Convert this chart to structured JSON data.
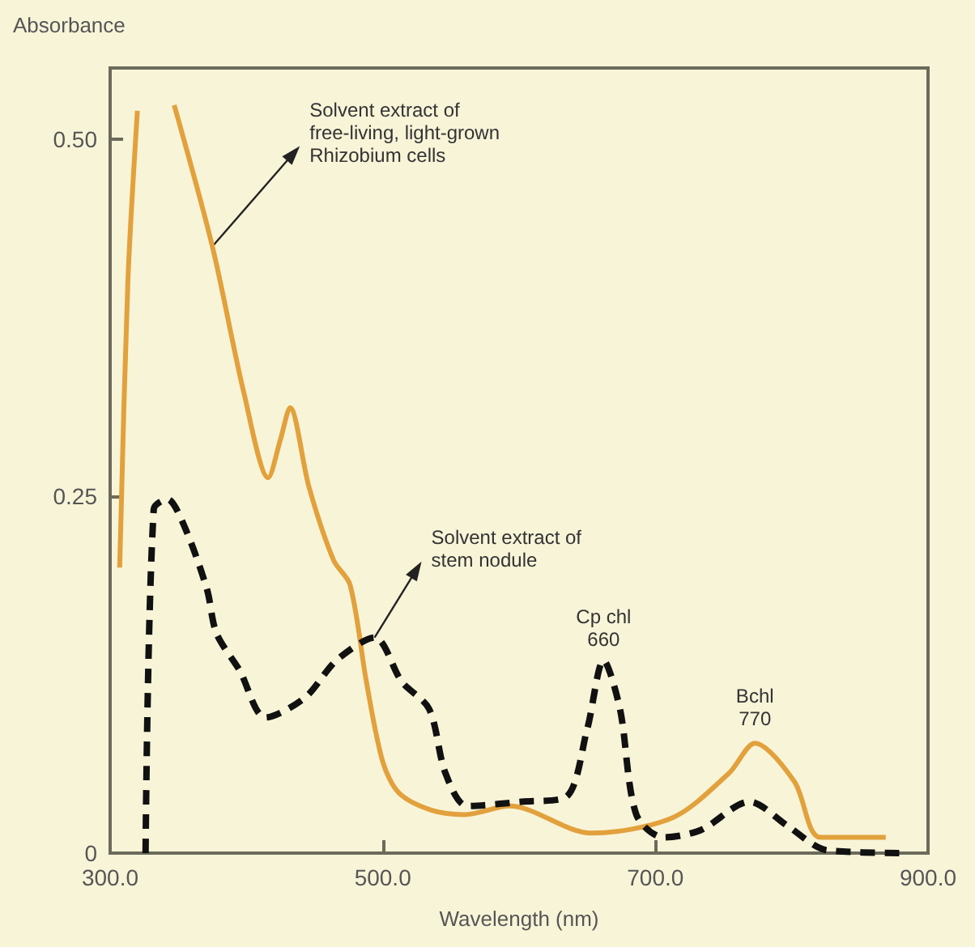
{
  "chart_data": {
    "type": "line",
    "ylabel": "Absorbance",
    "xlabel": "Wavelength (nm)",
    "xlim": [
      300,
      900
    ],
    "ylim": [
      0,
      0.55
    ],
    "xticks": [
      {
        "value": 300,
        "label": "300.0"
      },
      {
        "value": 500,
        "label": "500.0"
      },
      {
        "value": 700,
        "label": "700.0"
      },
      {
        "value": 900,
        "label": "900.0"
      }
    ],
    "yticks": [
      0,
      0.25,
      {
        "value": 0.5,
        "label": "0.50"
      }
    ],
    "grid": false,
    "marker": "none",
    "series": [
      {
        "color": "#e2a13c",
        "line_style": "solid",
        "x": [
          307,
          313,
          320,
          333,
          347,
          375,
          398,
          416,
          425,
          432,
          446,
          464,
          476,
          488,
          500,
          512,
          536,
          560,
          593,
          653,
          713,
          754,
          773,
          802,
          821,
          869
        ],
        "values": [
          0.2,
          0.4,
          0.52,
          null,
          0.524,
          0.425,
          0.323,
          0.263,
          0.29,
          0.312,
          0.256,
          0.205,
          0.188,
          0.12,
          0.064,
          0.042,
          0.03,
          0.027,
          0.033,
          0.014,
          0.025,
          0.056,
          0.077,
          0.05,
          0.011,
          0.011
        ]
      },
      {
        "color": "#111111",
        "line_style": "dashed",
        "x": [
          326,
          332,
          342,
          354,
          371,
          378,
          395,
          414,
          443,
          466,
          494,
          514,
          534,
          546,
          562,
          602,
          634,
          650,
          662,
          674,
          686,
          706,
          733,
          769,
          797,
          826,
          886
        ],
        "values": [
          0,
          0.241,
          0.248,
          0.23,
          0.185,
          0.154,
          0.128,
          0.095,
          0.109,
          0.135,
          0.151,
          0.12,
          0.101,
          0.056,
          0.033,
          0.036,
          0.039,
          0.087,
          0.135,
          0.101,
          0.027,
          0.011,
          0.016,
          0.036,
          0.019,
          0.002,
          0
        ]
      }
    ],
    "annotations": [
      {
        "text": "Solvent extract of\nfree-living, light-grown\nRhizobium cells",
        "x": 375,
        "y": 0.425
      },
      {
        "text": "Solvent extract of\nstem nodule",
        "x": 494,
        "y": 0.151
      },
      {
        "text": "Cp chl\n660",
        "x": 662,
        "y": 0.135
      },
      {
        "text": "Bchl\n770",
        "x": 773,
        "y": 0.077
      }
    ]
  }
}
